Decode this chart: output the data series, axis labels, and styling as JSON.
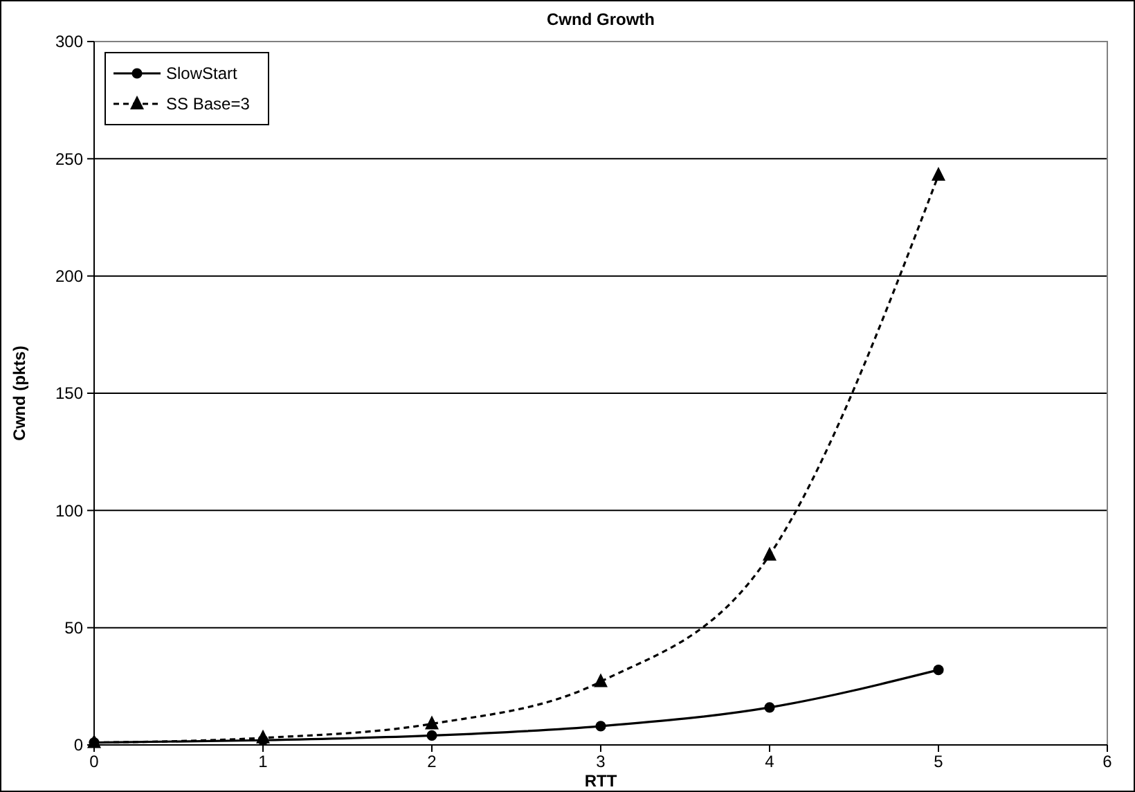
{
  "chart_data": {
    "type": "line",
    "title": "Cwnd Growth",
    "xlabel": "RTT",
    "ylabel": "Cwnd (pkts)",
    "x": [
      0,
      1,
      2,
      3,
      4,
      5
    ],
    "series": [
      {
        "name": "SlowStart",
        "color": "#000000",
        "values": [
          1,
          2,
          4,
          8,
          16,
          32
        ],
        "marker": "circle",
        "line_style": "solid"
      },
      {
        "name": "SS Base=3",
        "color": "#000000",
        "values": [
          1,
          3,
          9,
          27,
          81,
          243
        ],
        "marker": "triangle",
        "line_style": "dashed"
      }
    ],
    "xlim": [
      0,
      6
    ],
    "xticks": [
      0,
      1,
      2,
      3,
      4,
      5,
      6
    ],
    "ylim": [
      0,
      300
    ],
    "yticks": [
      0,
      50,
      100,
      150,
      200,
      250,
      300
    ],
    "grid": "y",
    "legend": "top left"
  }
}
